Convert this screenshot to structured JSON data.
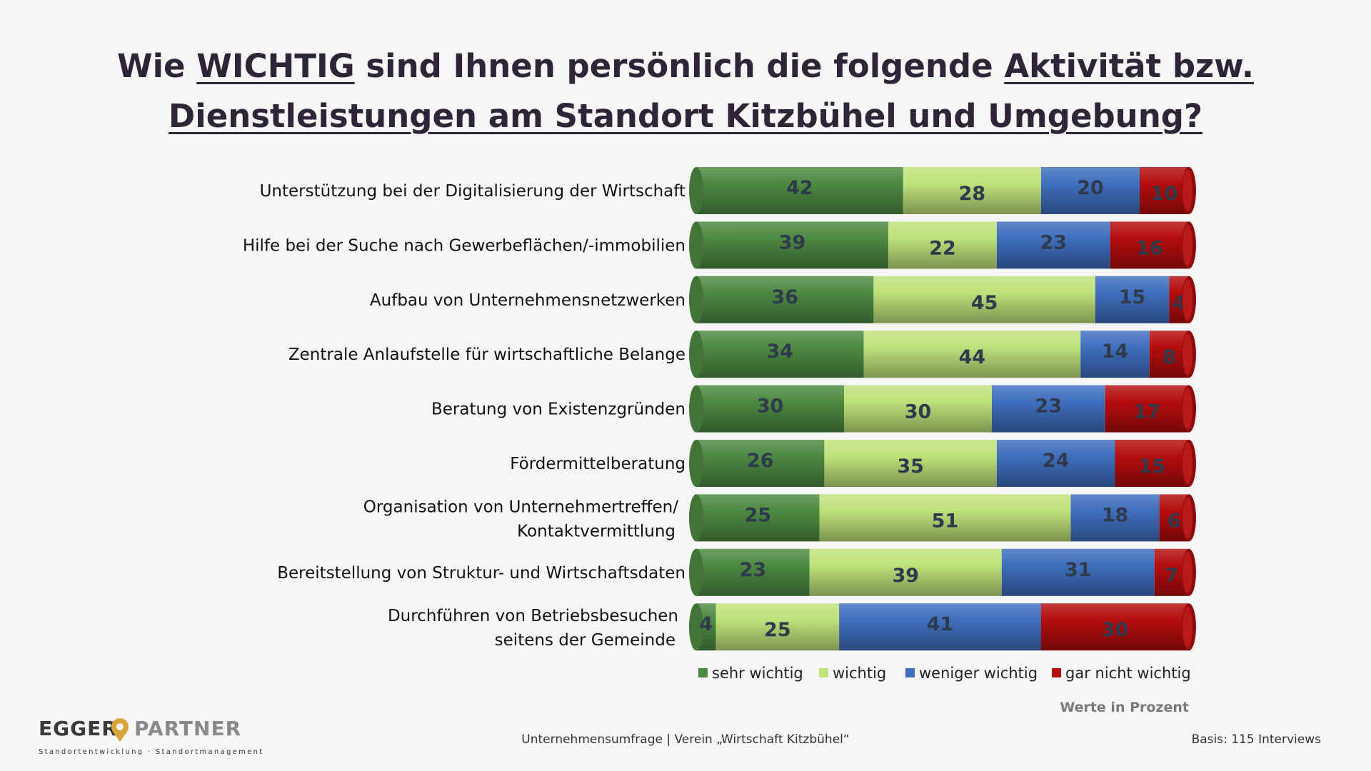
{
  "title": {
    "p1": "Wie ",
    "u1": "WICHTIG",
    "p2": " sind Ihnen persönlich die folgende ",
    "u2": "Aktivität bzw.",
    "u3": "Dienstleistungen am Standort Kitzbühel und Umgebung?"
  },
  "chart_data": {
    "type": "bar",
    "orientation": "horizontal",
    "stacked": true,
    "categories": [
      [
        "Unterstützung bei der Digitalisierung der Wirtschaft"
      ],
      [
        "Hilfe bei der Suche nach Gewerbeflächen/-immobilien"
      ],
      [
        "Aufbau von Unternehmensnetzwerken"
      ],
      [
        "Zentrale Anlaufstelle für wirtschaftliche Belange"
      ],
      [
        "Beratung von Existenzgründen"
      ],
      [
        "Fördermittelberatung"
      ],
      [
        "Organisation von Unternehmertreffen/",
        "Kontaktvermittlung"
      ],
      [
        "Bereitstellung von Struktur- und Wirtschaftsdaten"
      ],
      [
        "Durchführen von Betriebsbesuchen",
        "seitens der Gemeinde"
      ]
    ],
    "series": [
      {
        "name": "sehr wichtig",
        "color": "#4d8a42",
        "values": [
          42,
          39,
          36,
          34,
          30,
          26,
          25,
          23,
          4
        ]
      },
      {
        "name": "wichtig",
        "color": "#bfe27a",
        "values": [
          28,
          22,
          45,
          44,
          30,
          35,
          51,
          39,
          25
        ]
      },
      {
        "name": "weniger wichtig",
        "color": "#3f6fbe",
        "values": [
          20,
          23,
          15,
          14,
          23,
          24,
          18,
          31,
          41
        ]
      },
      {
        "name": "gar nicht wichtig",
        "color": "#b40d0d",
        "values": [
          10,
          16,
          4,
          8,
          17,
          15,
          6,
          7,
          30
        ]
      }
    ],
    "xlim": [
      0,
      100
    ],
    "legend_position": "bottom"
  },
  "note": "Werte in Prozent",
  "footer": {
    "source": "Unternehmensumfrage | Verein „Wirtschaft Kitzbühel“",
    "basis": "Basis: 115 Interviews"
  },
  "logo": {
    "left_word": "EGGER",
    "right_word": "PARTNER",
    "tagline": "Standortentwicklung · Standortmanagement",
    "pin_color": "#d9a33a"
  }
}
